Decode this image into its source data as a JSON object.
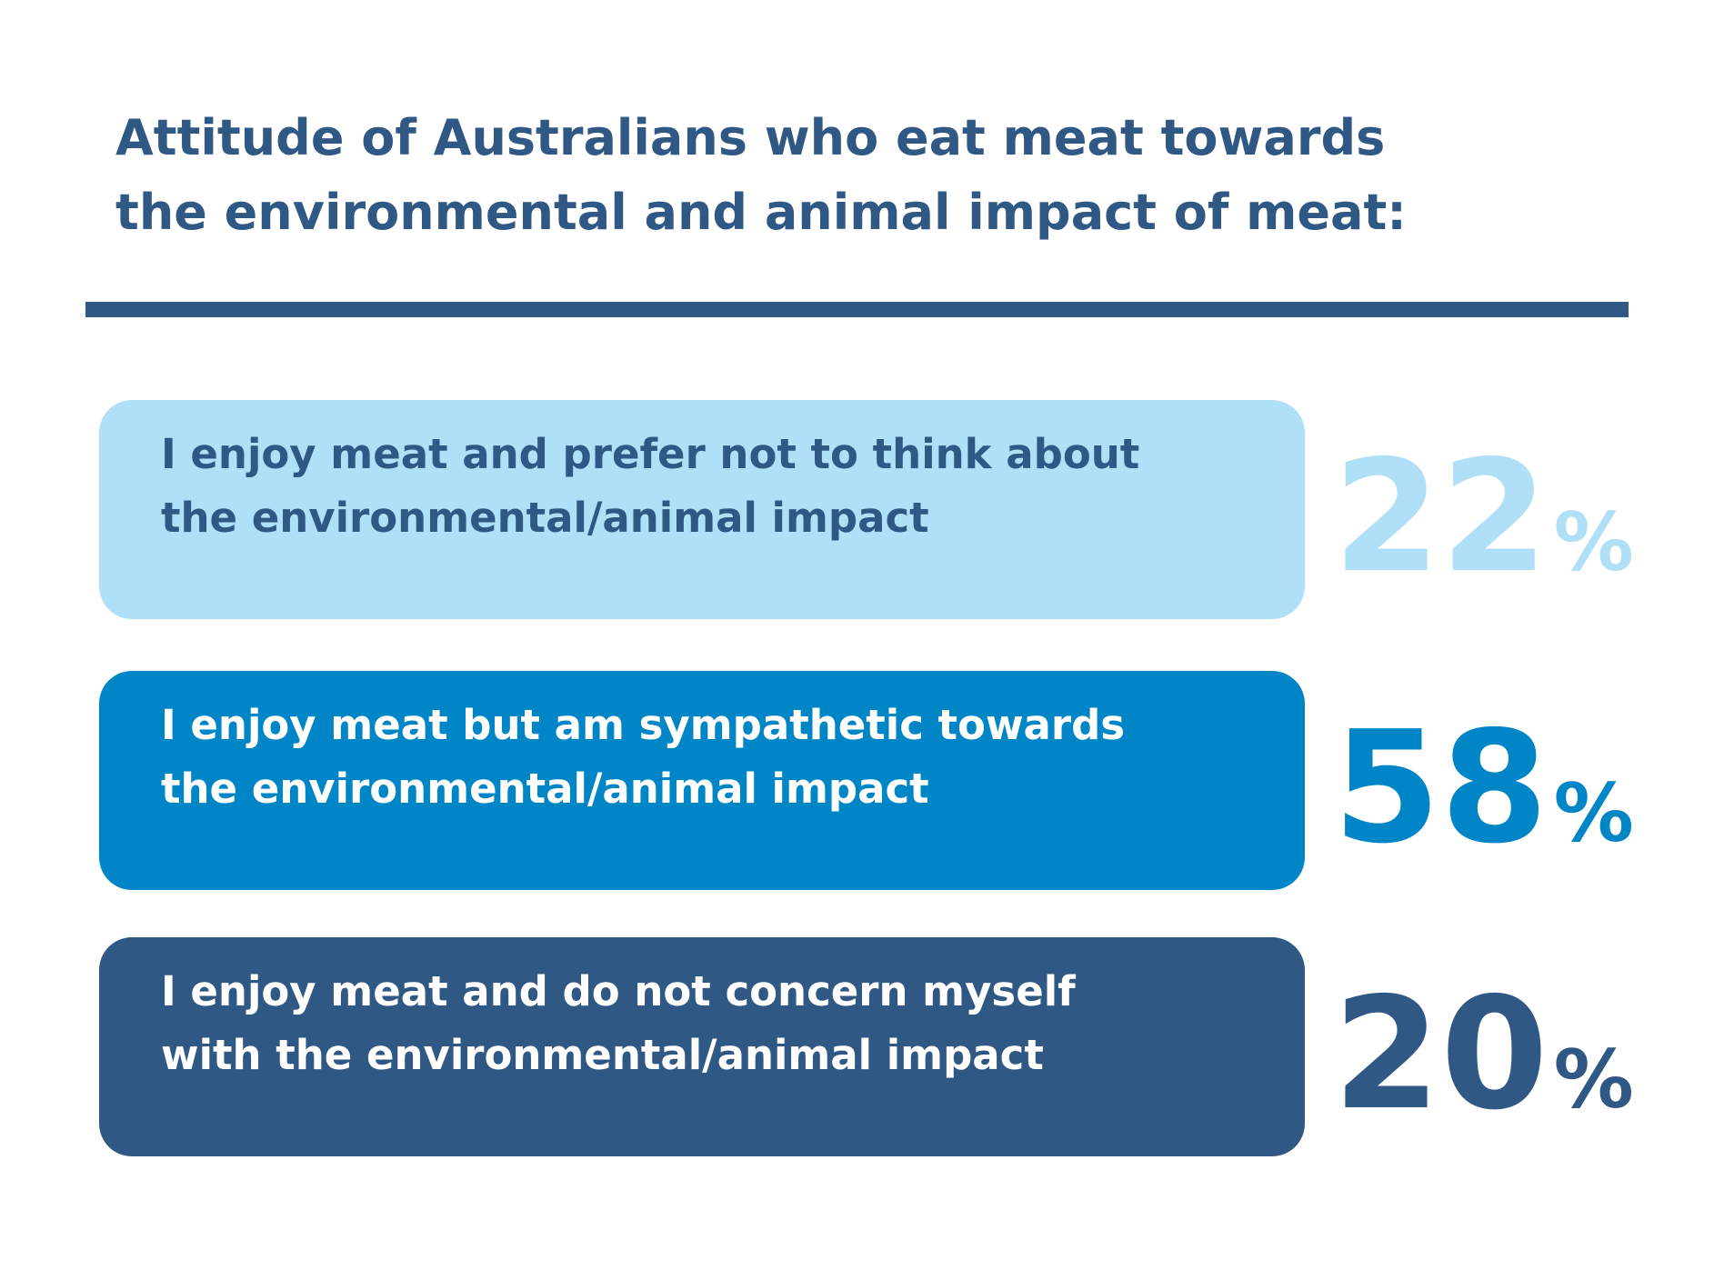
{
  "header": {
    "title_lines": [
      "Attitude of Australians who eat meat towards",
      "the environmental and animal impact of meat:"
    ]
  },
  "items": [
    {
      "lines": [
        "I enjoy meat and prefer not to think about",
        "the environmental/animal impact"
      ],
      "value": 22,
      "unit": "%"
    },
    {
      "lines": [
        "I enjoy meat but am sympathetic towards",
        "the environmental/animal impact"
      ],
      "value": 58,
      "unit": "%"
    },
    {
      "lines": [
        "I enjoy meat and do not concern myself",
        "with the environmental/animal impact"
      ],
      "value": 20,
      "unit": "%"
    }
  ]
}
